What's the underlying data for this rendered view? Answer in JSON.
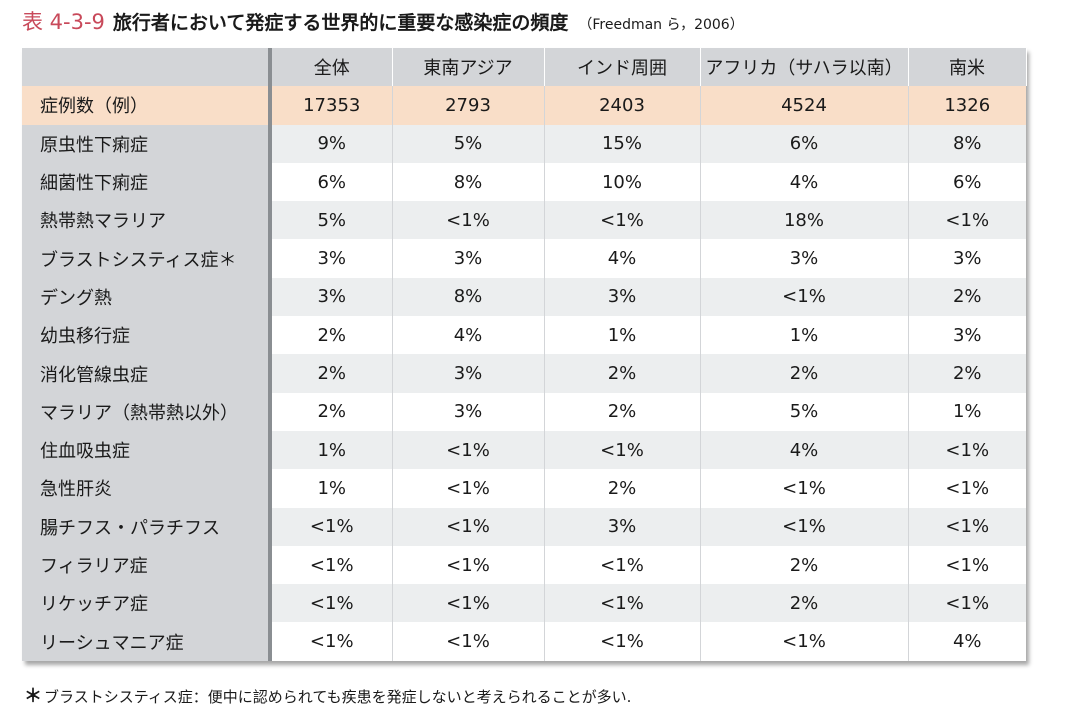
{
  "title": {
    "label": "表 4-3-9",
    "main": "旅行者において発症する世界的に重要な感染症の頻度",
    "source": "（Freedman ら，2006）"
  },
  "table": {
    "columns": [
      "",
      "全体",
      "東南アジア",
      "インド周囲",
      "アフリカ（サハラ以南）",
      "南米"
    ],
    "cases_row": {
      "label": "症例数（例）",
      "values": [
        "17353",
        "2793",
        "2403",
        "4524",
        "1326"
      ]
    },
    "rows": [
      {
        "label": "原虫性下痢症",
        "values": [
          "9%",
          "5%",
          "15%",
          "6%",
          "8%"
        ]
      },
      {
        "label": "細菌性下痢症",
        "values": [
          "6%",
          "8%",
          "10%",
          "4%",
          "6%"
        ]
      },
      {
        "label": "熱帯熱マラリア",
        "values": [
          "5%",
          "<1%",
          "<1%",
          "18%",
          "<1%"
        ]
      },
      {
        "label": "ブラストシスティス症＊",
        "values": [
          "3%",
          "3%",
          "4%",
          "3%",
          "3%"
        ]
      },
      {
        "label": "デング熱",
        "values": [
          "3%",
          "8%",
          "3%",
          "<1%",
          "2%"
        ]
      },
      {
        "label": "幼虫移行症",
        "values": [
          "2%",
          "4%",
          "1%",
          "1%",
          "3%"
        ]
      },
      {
        "label": "消化管線虫症",
        "values": [
          "2%",
          "3%",
          "2%",
          "2%",
          "2%"
        ]
      },
      {
        "label": "マラリア（熱帯熱以外）",
        "values": [
          "2%",
          "3%",
          "2%",
          "5%",
          "1%"
        ]
      },
      {
        "label": "住血吸虫症",
        "values": [
          "1%",
          "<1%",
          "<1%",
          "4%",
          "<1%"
        ]
      },
      {
        "label": "急性肝炎",
        "values": [
          "1%",
          "<1%",
          "2%",
          "<1%",
          "<1%"
        ]
      },
      {
        "label": "腸チフス・パラチフス",
        "values": [
          "<1%",
          "<1%",
          "3%",
          "<1%",
          "<1%"
        ]
      },
      {
        "label": "フィラリア症",
        "values": [
          "<1%",
          "<1%",
          "<1%",
          "2%",
          "<1%"
        ]
      },
      {
        "label": "リケッチア症",
        "values": [
          "<1%",
          "<1%",
          "<1%",
          "2%",
          "<1%"
        ]
      },
      {
        "label": "リーシュマニア症",
        "values": [
          "<1%",
          "<1%",
          "<1%",
          "<1%",
          "4%"
        ]
      }
    ]
  },
  "footnote": {
    "mark": "＊",
    "text": "ブラストシスティス症：便中に認められても疾患を発症しないと考えられることが多い."
  },
  "colors": {
    "title_label": "#c8495a",
    "header_bg": "#d3d5d8",
    "cases_bg": "#f9dec8",
    "stripe_bg": "#eceeef",
    "divider": "#8a8e92"
  }
}
